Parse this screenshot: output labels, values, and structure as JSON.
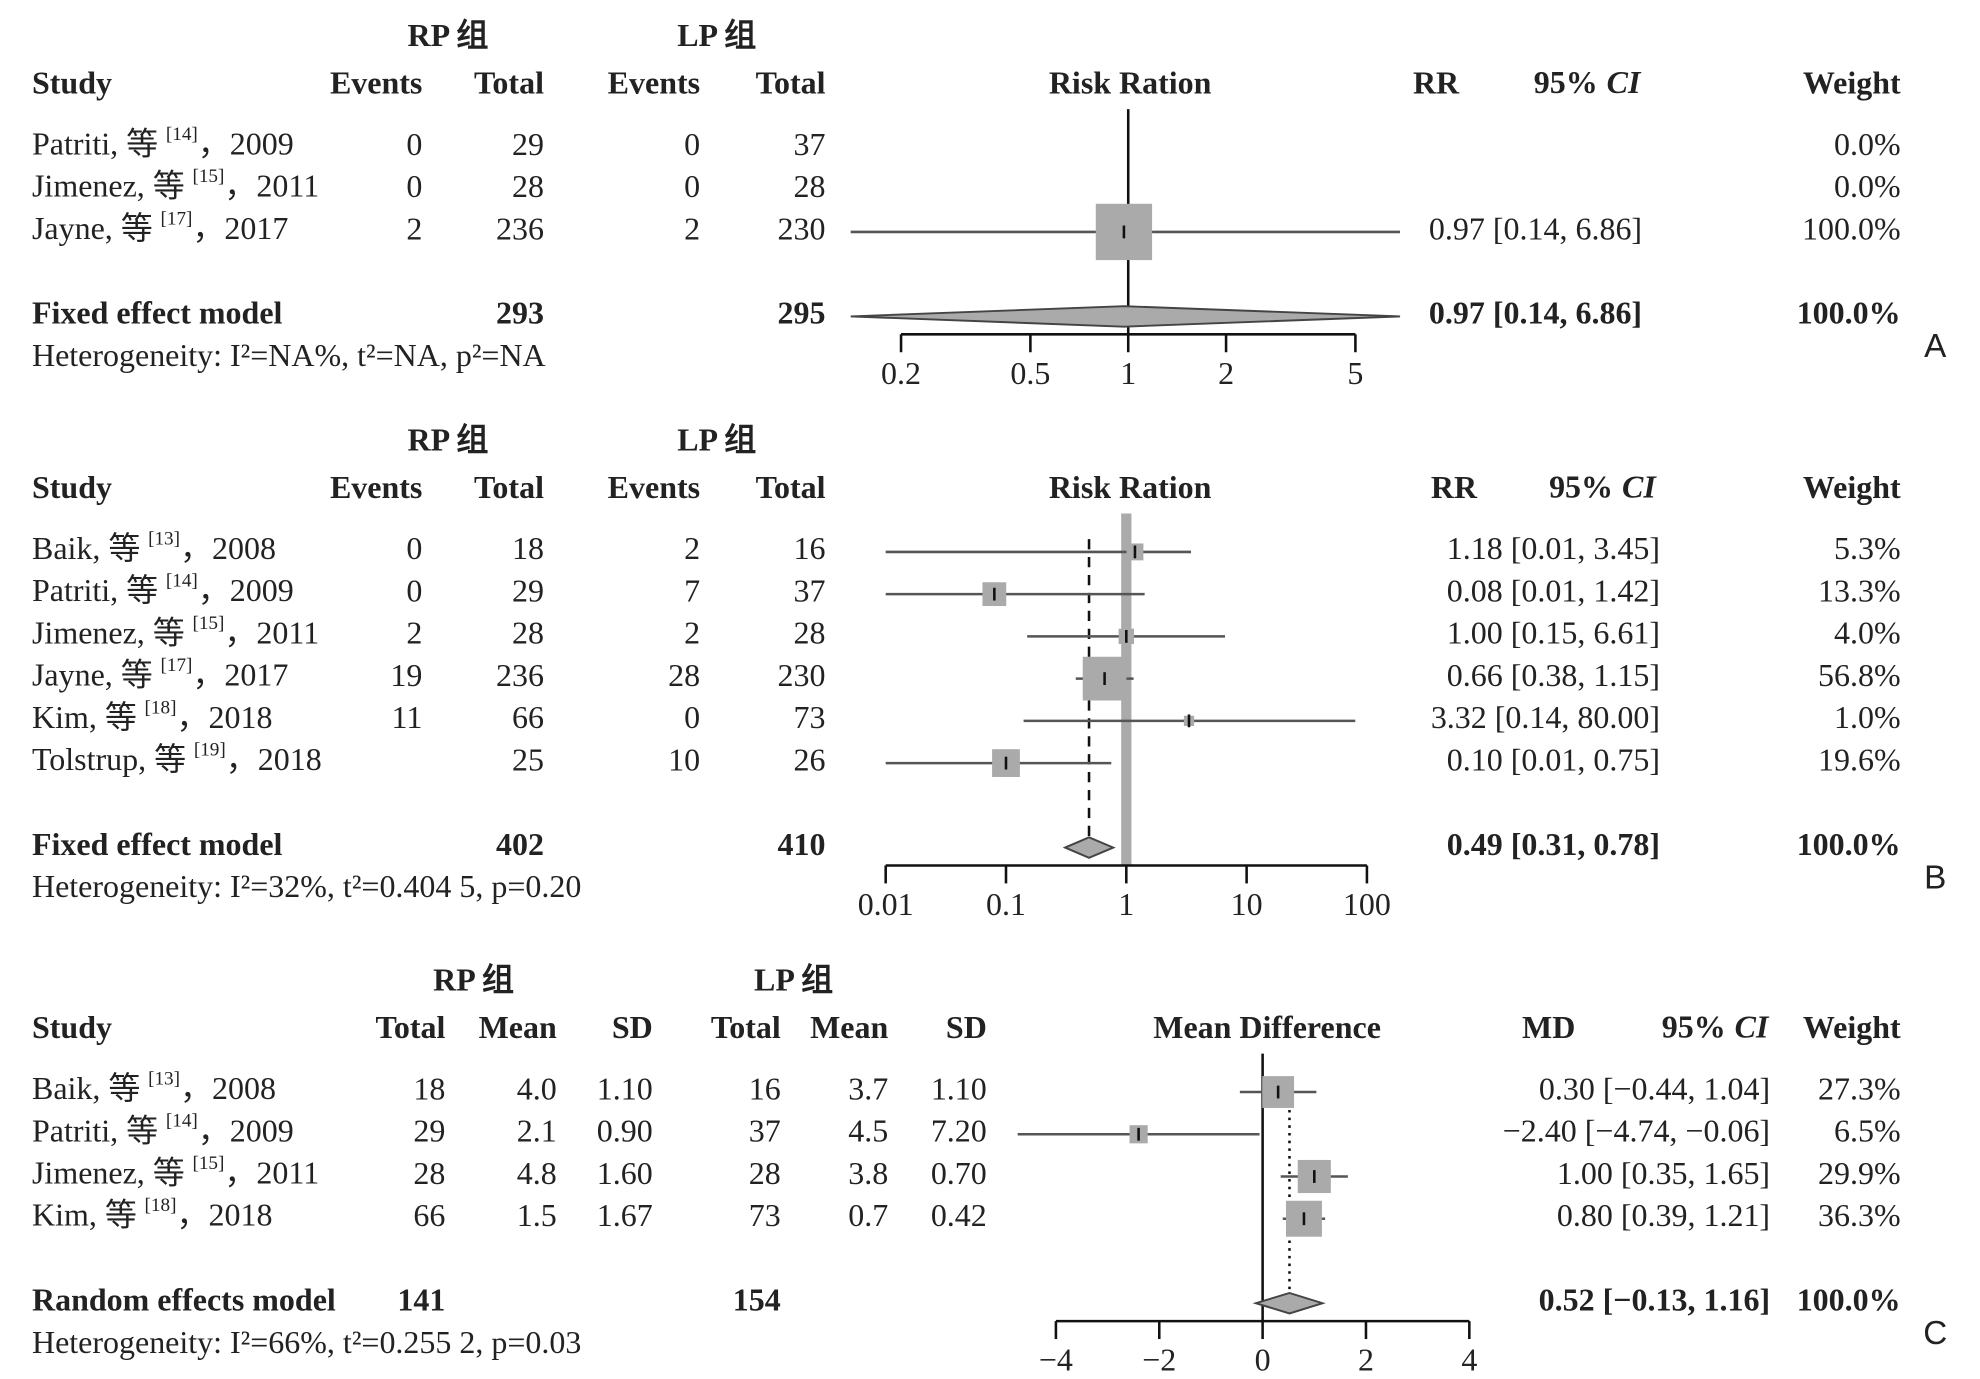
{
  "chart_data": [
    {
      "type": "forest",
      "panel": "A",
      "log": true,
      "group_labels": [
        "RP 组",
        "LP 组"
      ],
      "headers": [
        "Study",
        "Events",
        "Total",
        "Events",
        "Total"
      ],
      "axis_title": "Risk Ration",
      "est_header": "RR",
      "ci_header": "95%",
      "ci_header_italic": "CI",
      "weight_header": "Weight",
      "xlim": [
        0.2,
        5
      ],
      "xticks": [
        0.2,
        0.5,
        1,
        2,
        5
      ],
      "null_value": 1,
      "studies": [
        {
          "name": "Patriti, 等",
          "ref": "[14]",
          "year": "，2009",
          "cells": [
            "0",
            "29",
            "0",
            "37"
          ],
          "est": null,
          "lo": null,
          "hi": null,
          "ci_label": null,
          "weight": 0.0,
          "weight_label": "0.0%"
        },
        {
          "name": "Jimenez, 等",
          "ref": "[15]",
          "year": "，2011",
          "cells": [
            "0",
            "28",
            "0",
            "28"
          ],
          "est": null,
          "lo": null,
          "hi": null,
          "ci_label": null,
          "weight": 0.0,
          "weight_label": "0.0%"
        },
        {
          "name": "Jayne, 等",
          "ref": "[17]",
          "year": "，2017",
          "cells": [
            "2",
            "236",
            "2",
            "230"
          ],
          "est": 0.97,
          "lo": 0.14,
          "hi": 6.86,
          "ci_label": "0.97 [0.14, 6.86]",
          "weight": 100.0,
          "weight_label": "100.0%"
        }
      ],
      "pooled": {
        "name": "Fixed effect model",
        "cells": [
          null,
          "293",
          null,
          "295"
        ],
        "est": 0.97,
        "lo": 0.14,
        "hi": 6.86,
        "ci_label": "0.97 [0.14, 6.86]",
        "weight_label": "100.0%"
      },
      "heterogeneity": "Heterogeneity: I²=NA%, t²=NA, p²=NA"
    },
    {
      "type": "forest",
      "panel": "B",
      "log": true,
      "group_labels": [
        "RP 组",
        "LP 组"
      ],
      "headers": [
        "Study",
        "Events",
        "Total",
        "Events",
        "Total"
      ],
      "axis_title": "Risk Ration",
      "est_header": "RR",
      "ci_header": "95%",
      "ci_header_italic": "CI",
      "weight_header": "Weight",
      "xlim": [
        0.01,
        100
      ],
      "xticks": [
        0.01,
        0.1,
        1,
        10,
        100
      ],
      "null_value": 1,
      "studies": [
        {
          "name": "Baik, 等",
          "ref": "[13]",
          "year": "，2008",
          "cells": [
            "0",
            "18",
            "2",
            "16"
          ],
          "est": 1.18,
          "lo": 0.01,
          "hi": 3.45,
          "ci_label": "1.18 [0.01, 3.45]",
          "weight": 5.3,
          "weight_label": "5.3%"
        },
        {
          "name": "Patriti, 等",
          "ref": "[14]",
          "year": "，2009",
          "cells": [
            "0",
            "29",
            "7",
            "37"
          ],
          "est": 0.08,
          "lo": 0.01,
          "hi": 1.42,
          "ci_label": "0.08 [0.01, 1.42]",
          "weight": 13.3,
          "weight_label": "13.3%"
        },
        {
          "name": "Jimenez, 等",
          "ref": "[15]",
          "year": "，2011",
          "cells": [
            "2",
            "28",
            "2",
            "28"
          ],
          "est": 1.0,
          "lo": 0.15,
          "hi": 6.61,
          "ci_label": "1.00 [0.15, 6.61]",
          "weight": 4.0,
          "weight_label": "4.0%"
        },
        {
          "name": "Jayne, 等",
          "ref": "[17]",
          "year": "，2017",
          "cells": [
            "19",
            "236",
            "28",
            "230"
          ],
          "est": 0.66,
          "lo": 0.38,
          "hi": 1.15,
          "ci_label": "0.66 [0.38, 1.15]",
          "weight": 56.8,
          "weight_label": "56.8%"
        },
        {
          "name": "Kim, 等",
          "ref": "[18]",
          "year": "，2018",
          "cells": [
            "11",
            "66",
            "0",
            "73"
          ],
          "est": 3.32,
          "lo": 0.14,
          "hi": 80.0,
          "ci_label": "3.32 [0.14, 80.00]",
          "weight": 1.0,
          "weight_label": "1.0%"
        },
        {
          "name": "Tolstrup, 等",
          "ref": "[19]",
          "year": "，2018",
          "cells": [
            null,
            "25",
            "10",
            "26"
          ],
          "est": 0.1,
          "lo": 0.01,
          "hi": 0.75,
          "ci_label": "0.10 [0.01, 0.75]",
          "weight": 19.6,
          "weight_label": "19.6%"
        }
      ],
      "pooled": {
        "name": "Fixed effect model",
        "cells": [
          null,
          "402",
          null,
          "410"
        ],
        "est": 0.49,
        "lo": 0.31,
        "hi": 0.78,
        "ci_label": "0.49 [0.31, 0.78]",
        "weight_label": "100.0%"
      },
      "heterogeneity": "Heterogeneity: I²=32%, t²=0.404 5, p=0.20"
    },
    {
      "type": "forest",
      "panel": "C",
      "log": false,
      "group_labels": [
        "RP 组",
        "LP 组"
      ],
      "headers": [
        "Study",
        "Total",
        "Mean",
        "SD",
        "Total",
        "Mean",
        "SD"
      ],
      "axis_title": "Mean Difference",
      "est_header": "MD",
      "ci_header": "95%",
      "ci_header_italic": "CI",
      "weight_header": "Weight",
      "xlim": [
        -4,
        4
      ],
      "xticks": [
        {
          "value": -4,
          "label": "−4"
        },
        {
          "value": -2,
          "label": "−2"
        },
        0,
        2,
        4
      ],
      "null_value": 0,
      "studies": [
        {
          "name": "Baik, 等",
          "ref": "[13]",
          "year": "，2008",
          "cells": [
            "18",
            "4.0",
            "1.10",
            "16",
            "3.7",
            "1.10"
          ],
          "est": 0.3,
          "lo": -0.44,
          "hi": 1.04,
          "ci_label": "0.30 [−0.44, 1.04]",
          "weight": 27.3,
          "weight_label": "27.3%"
        },
        {
          "name": "Patriti, 等",
          "ref": "[14]",
          "year": "，2009",
          "cells": [
            "29",
            "2.1",
            "0.90",
            "37",
            "4.5",
            "7.20"
          ],
          "est": -2.4,
          "lo": -4.74,
          "hi": -0.06,
          "ci_label": "−2.40 [−4.74, −0.06]",
          "weight": 6.5,
          "weight_label": "6.5%"
        },
        {
          "name": "Jimenez, 等",
          "ref": "[15]",
          "year": "，2011",
          "cells": [
            "28",
            "4.8",
            "1.60",
            "28",
            "3.8",
            "0.70"
          ],
          "est": 1.0,
          "lo": 0.35,
          "hi": 1.65,
          "ci_label": "1.00 [0.35, 1.65]",
          "weight": 29.9,
          "weight_label": "29.9%"
        },
        {
          "name": "Kim, 等",
          "ref": "[18]",
          "year": "，2018",
          "cells": [
            "66",
            "1.5",
            "1.67",
            "73",
            "0.7",
            "0.42"
          ],
          "est": 0.8,
          "lo": 0.39,
          "hi": 1.21,
          "ci_label": "0.80 [0.39, 1.21]",
          "weight": 36.3,
          "weight_label": "36.3%"
        }
      ],
      "pooled": {
        "name": "Random effects model",
        "cells": [
          "141",
          null,
          null,
          "154",
          null,
          null
        ],
        "est": 0.52,
        "lo": -0.13,
        "hi": 1.16,
        "ci_label": "0.52 [−0.13, 1.16]",
        "weight_label": "100.0%"
      },
      "heterogeneity": "Heterogeneity: I²=66%, t²=0.255 2, p=0.03"
    }
  ]
}
